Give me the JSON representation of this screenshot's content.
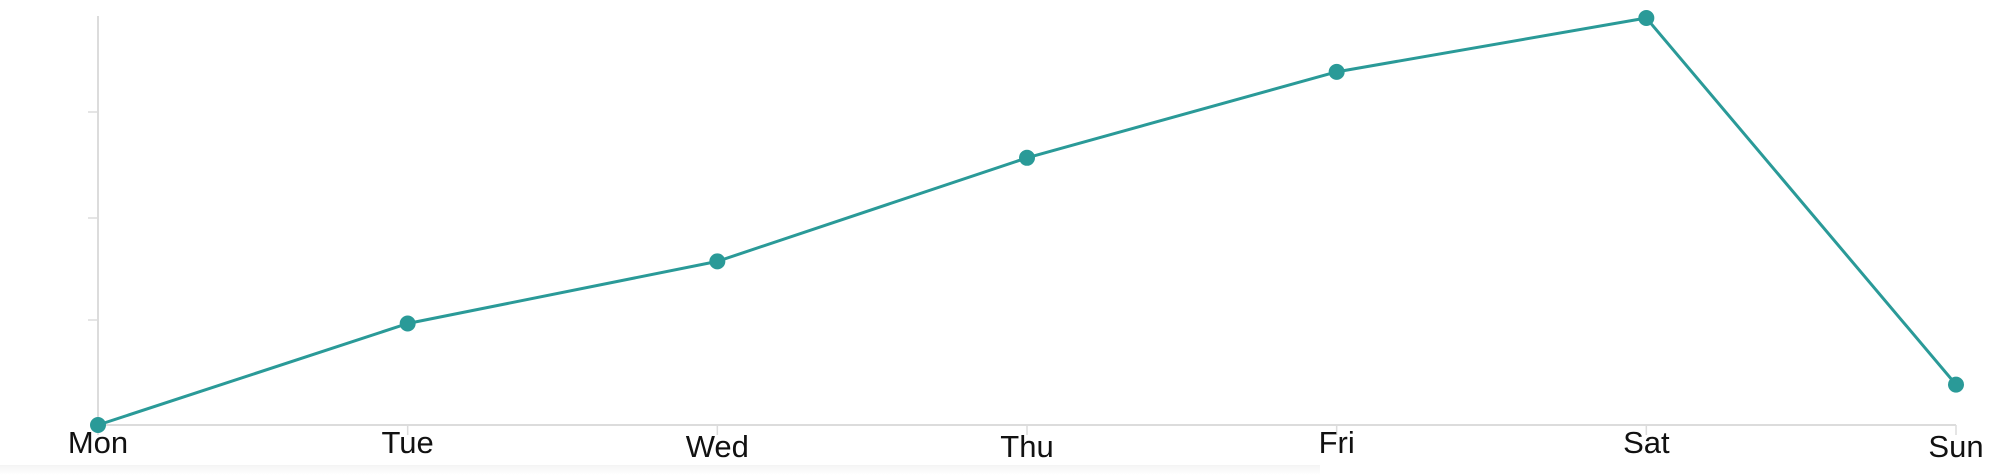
{
  "chart_data": {
    "type": "line",
    "categories": [
      "Mon",
      "Tue",
      "Wed",
      "Thu",
      "Fri",
      "Sat",
      "Sun"
    ],
    "series": [
      {
        "values": [
          0,
          98,
          158,
          258,
          341,
          393,
          39
        ],
        "color": "#2a9a98"
      }
    ],
    "ylim": [
      0,
      393
    ],
    "grid": false,
    "legend": "none"
  }
}
